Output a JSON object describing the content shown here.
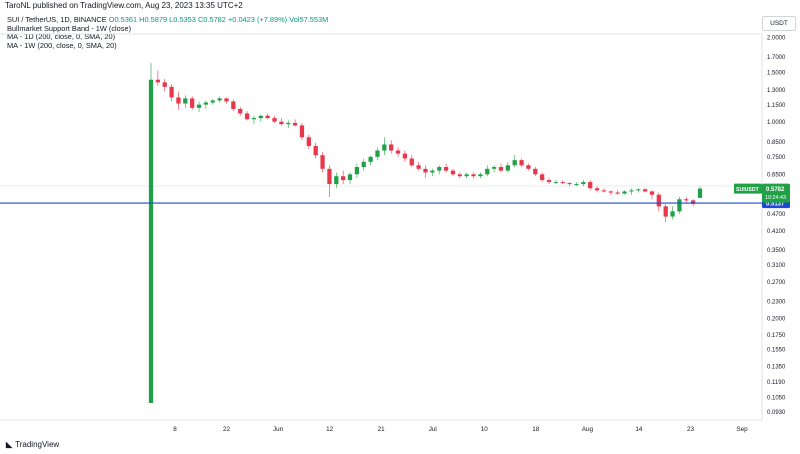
{
  "header": {
    "published_by": "TaroNL published on TradingView.com, Aug 23, 2023 13:35 UTC+2"
  },
  "legend": {
    "symbol": "SUI / TetherUS, 1D, BINANCE",
    "open": "O0.5361",
    "high": "H0.5879",
    "low": "L0.5353",
    "close": "C0.5782",
    "change": "+0.0423 (+7.89%)",
    "volume": "Vol57.553M",
    "indicators": [
      "Bullmarket Support Band - 1W (close)",
      "MA - 1D (200, close, 0, SMA, 20)",
      "MA - 1W (200, close, 0, SMA, 20)"
    ]
  },
  "currency_button": "USDT",
  "footer": {
    "brand": "TradingView"
  },
  "colors": {
    "up": "#22a047",
    "down": "#e8364b",
    "support_line": "#1e48d6",
    "last_price_tag": "#22a047",
    "support_tag": "#1e48d6"
  },
  "chart_data": {
    "type": "candlestick",
    "symbol": "SUIUSDT",
    "y_scale": "log",
    "ylim": [
      0.087,
      2.05
    ],
    "y_ticks": [
      "2.0000",
      "1.7000",
      "1.5000",
      "1.3000",
      "1.1500",
      "1.0000",
      "0.8500",
      "0.7500",
      "0.6500",
      "0.5500",
      "0.4700",
      "0.4100",
      "0.3500",
      "0.3100",
      "0.2700",
      "0.2300",
      "0.2000",
      "0.1750",
      "0.1550",
      "0.1350",
      "0.1190",
      "0.1050",
      "0.0930"
    ],
    "x_ticks": [
      "8",
      "22",
      "Jun",
      "12",
      "21",
      "Jul",
      "10",
      "18",
      "Aug",
      "14",
      "23",
      "Sep"
    ],
    "horizontal_line": {
      "value": 0.5137,
      "label": "0.5137"
    },
    "last_price": {
      "symbol_label": "SUIUSDT",
      "value": "0.5782",
      "countdown": "10:24:43"
    },
    "candles": [
      {
        "o": 0.1,
        "h": 1.62,
        "l": 0.1,
        "c": 1.41
      },
      {
        "o": 1.41,
        "h": 1.52,
        "l": 1.34,
        "c": 1.38
      },
      {
        "o": 1.38,
        "h": 1.42,
        "l": 1.28,
        "c": 1.33
      },
      {
        "o": 1.33,
        "h": 1.36,
        "l": 1.18,
        "c": 1.22
      },
      {
        "o": 1.22,
        "h": 1.28,
        "l": 1.1,
        "c": 1.16
      },
      {
        "o": 1.16,
        "h": 1.24,
        "l": 1.12,
        "c": 1.21
      },
      {
        "o": 1.21,
        "h": 1.23,
        "l": 1.1,
        "c": 1.12
      },
      {
        "o": 1.12,
        "h": 1.18,
        "l": 1.08,
        "c": 1.15
      },
      {
        "o": 1.15,
        "h": 1.19,
        "l": 1.11,
        "c": 1.17
      },
      {
        "o": 1.17,
        "h": 1.2,
        "l": 1.15,
        "c": 1.19
      },
      {
        "o": 1.19,
        "h": 1.23,
        "l": 1.17,
        "c": 1.21
      },
      {
        "o": 1.21,
        "h": 1.22,
        "l": 1.16,
        "c": 1.18
      },
      {
        "o": 1.18,
        "h": 1.2,
        "l": 1.09,
        "c": 1.11
      },
      {
        "o": 1.11,
        "h": 1.13,
        "l": 1.05,
        "c": 1.07
      },
      {
        "o": 1.07,
        "h": 1.09,
        "l": 1.01,
        "c": 1.02
      },
      {
        "o": 1.02,
        "h": 1.05,
        "l": 0.98,
        "c": 1.03
      },
      {
        "o": 1.03,
        "h": 1.06,
        "l": 1.0,
        "c": 1.05
      },
      {
        "o": 1.05,
        "h": 1.07,
        "l": 1.02,
        "c": 1.03
      },
      {
        "o": 1.03,
        "h": 1.05,
        "l": 0.99,
        "c": 1.0
      },
      {
        "o": 1.0,
        "h": 1.03,
        "l": 0.97,
        "c": 0.98
      },
      {
        "o": 0.98,
        "h": 1.01,
        "l": 0.95,
        "c": 0.99
      },
      {
        "o": 0.99,
        "h": 1.02,
        "l": 0.96,
        "c": 0.97
      },
      {
        "o": 0.97,
        "h": 0.99,
        "l": 0.86,
        "c": 0.88
      },
      {
        "o": 0.88,
        "h": 0.9,
        "l": 0.8,
        "c": 0.82
      },
      {
        "o": 0.82,
        "h": 0.84,
        "l": 0.74,
        "c": 0.76
      },
      {
        "o": 0.76,
        "h": 0.78,
        "l": 0.66,
        "c": 0.68
      },
      {
        "o": 0.68,
        "h": 0.7,
        "l": 0.54,
        "c": 0.6
      },
      {
        "o": 0.6,
        "h": 0.66,
        "l": 0.58,
        "c": 0.64
      },
      {
        "o": 0.64,
        "h": 0.67,
        "l": 0.6,
        "c": 0.62
      },
      {
        "o": 0.62,
        "h": 0.66,
        "l": 0.6,
        "c": 0.65
      },
      {
        "o": 0.65,
        "h": 0.71,
        "l": 0.63,
        "c": 0.69
      },
      {
        "o": 0.69,
        "h": 0.74,
        "l": 0.67,
        "c": 0.72
      },
      {
        "o": 0.72,
        "h": 0.76,
        "l": 0.7,
        "c": 0.75
      },
      {
        "o": 0.75,
        "h": 0.81,
        "l": 0.73,
        "c": 0.79
      },
      {
        "o": 0.79,
        "h": 0.88,
        "l": 0.76,
        "c": 0.83
      },
      {
        "o": 0.83,
        "h": 0.86,
        "l": 0.77,
        "c": 0.79
      },
      {
        "o": 0.79,
        "h": 0.81,
        "l": 0.75,
        "c": 0.77
      },
      {
        "o": 0.77,
        "h": 0.79,
        "l": 0.72,
        "c": 0.74
      },
      {
        "o": 0.74,
        "h": 0.76,
        "l": 0.69,
        "c": 0.7
      },
      {
        "o": 0.7,
        "h": 0.72,
        "l": 0.67,
        "c": 0.68
      },
      {
        "o": 0.68,
        "h": 0.7,
        "l": 0.63,
        "c": 0.66
      },
      {
        "o": 0.66,
        "h": 0.68,
        "l": 0.64,
        "c": 0.67
      },
      {
        "o": 0.67,
        "h": 0.7,
        "l": 0.65,
        "c": 0.69
      },
      {
        "o": 0.69,
        "h": 0.71,
        "l": 0.66,
        "c": 0.67
      },
      {
        "o": 0.67,
        "h": 0.68,
        "l": 0.64,
        "c": 0.65
      },
      {
        "o": 0.65,
        "h": 0.66,
        "l": 0.63,
        "c": 0.64
      },
      {
        "o": 0.64,
        "h": 0.66,
        "l": 0.63,
        "c": 0.65
      },
      {
        "o": 0.65,
        "h": 0.66,
        "l": 0.63,
        "c": 0.64
      },
      {
        "o": 0.64,
        "h": 0.66,
        "l": 0.63,
        "c": 0.65
      },
      {
        "o": 0.65,
        "h": 0.7,
        "l": 0.64,
        "c": 0.68
      },
      {
        "o": 0.68,
        "h": 0.7,
        "l": 0.66,
        "c": 0.69
      },
      {
        "o": 0.69,
        "h": 0.71,
        "l": 0.66,
        "c": 0.67
      },
      {
        "o": 0.67,
        "h": 0.72,
        "l": 0.66,
        "c": 0.7
      },
      {
        "o": 0.7,
        "h": 0.76,
        "l": 0.69,
        "c": 0.73
      },
      {
        "o": 0.73,
        "h": 0.74,
        "l": 0.69,
        "c": 0.7
      },
      {
        "o": 0.7,
        "h": 0.71,
        "l": 0.67,
        "c": 0.68
      },
      {
        "o": 0.68,
        "h": 0.69,
        "l": 0.64,
        "c": 0.65
      },
      {
        "o": 0.65,
        "h": 0.66,
        "l": 0.61,
        "c": 0.62
      },
      {
        "o": 0.62,
        "h": 0.63,
        "l": 0.6,
        "c": 0.61
      },
      {
        "o": 0.61,
        "h": 0.62,
        "l": 0.6,
        "c": 0.61
      },
      {
        "o": 0.61,
        "h": 0.62,
        "l": 0.6,
        "c": 0.605
      },
      {
        "o": 0.605,
        "h": 0.61,
        "l": 0.59,
        "c": 0.6
      },
      {
        "o": 0.6,
        "h": 0.61,
        "l": 0.59,
        "c": 0.6
      },
      {
        "o": 0.6,
        "h": 0.62,
        "l": 0.59,
        "c": 0.61
      },
      {
        "o": 0.61,
        "h": 0.62,
        "l": 0.57,
        "c": 0.58
      },
      {
        "o": 0.58,
        "h": 0.59,
        "l": 0.56,
        "c": 0.57
      },
      {
        "o": 0.57,
        "h": 0.58,
        "l": 0.56,
        "c": 0.565
      },
      {
        "o": 0.565,
        "h": 0.57,
        "l": 0.55,
        "c": 0.56
      },
      {
        "o": 0.56,
        "h": 0.57,
        "l": 0.55,
        "c": 0.555
      },
      {
        "o": 0.555,
        "h": 0.57,
        "l": 0.55,
        "c": 0.565
      },
      {
        "o": 0.565,
        "h": 0.58,
        "l": 0.55,
        "c": 0.57
      },
      {
        "o": 0.57,
        "h": 0.58,
        "l": 0.56,
        "c": 0.575
      },
      {
        "o": 0.575,
        "h": 0.58,
        "l": 0.56,
        "c": 0.565
      },
      {
        "o": 0.565,
        "h": 0.57,
        "l": 0.53,
        "c": 0.55
      },
      {
        "o": 0.55,
        "h": 0.56,
        "l": 0.48,
        "c": 0.5
      },
      {
        "o": 0.5,
        "h": 0.51,
        "l": 0.44,
        "c": 0.46
      },
      {
        "o": 0.46,
        "h": 0.5,
        "l": 0.45,
        "c": 0.48
      },
      {
        "o": 0.48,
        "h": 0.54,
        "l": 0.47,
        "c": 0.53
      },
      {
        "o": 0.53,
        "h": 0.54,
        "l": 0.51,
        "c": 0.525
      },
      {
        "o": 0.525,
        "h": 0.53,
        "l": 0.5,
        "c": 0.51
      },
      {
        "o": 0.5361,
        "h": 0.5879,
        "l": 0.5353,
        "c": 0.5782
      }
    ]
  }
}
